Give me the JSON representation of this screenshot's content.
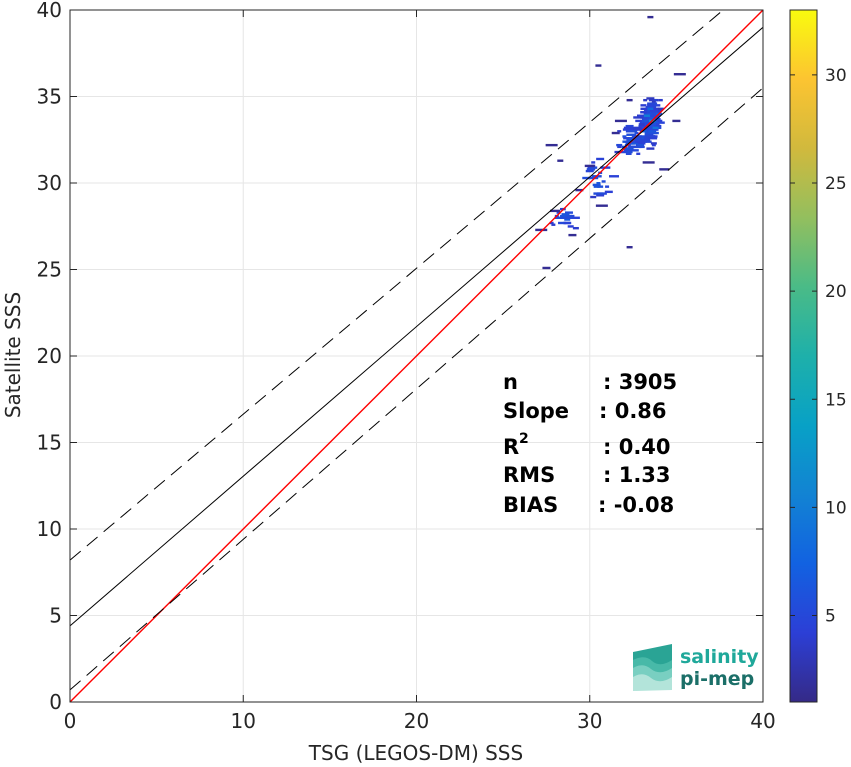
{
  "chart_data": {
    "type": "scatter",
    "title": "",
    "xlabel": "TSG (LEGOS-DM) SSS",
    "ylabel": "Satellite SSS",
    "xlim": [
      0,
      40
    ],
    "ylim": [
      0,
      40
    ],
    "xticks": [
      0,
      10,
      20,
      30,
      40
    ],
    "yticks": [
      0,
      5,
      10,
      15,
      20,
      25,
      30,
      35,
      40
    ],
    "grid": true,
    "colorbar": {
      "colormap": "parula",
      "range": [
        1,
        33
      ],
      "ticks": [
        5,
        10,
        15,
        20,
        25,
        30
      ]
    },
    "lines": [
      {
        "role": "one-to-one",
        "color": "#ff0000",
        "style": "solid",
        "points": [
          [
            0,
            0
          ],
          [
            40,
            40
          ]
        ]
      },
      {
        "role": "regression",
        "color": "#000000",
        "style": "solid",
        "points": [
          [
            0,
            4.4
          ],
          [
            40,
            39.0
          ]
        ]
      },
      {
        "role": "upper-bound",
        "color": "#000000",
        "style": "dashed",
        "points": [
          [
            0,
            8.2
          ],
          [
            37.7,
            40
          ]
        ]
      },
      {
        "role": "lower-bound",
        "color": "#000000",
        "style": "dashed",
        "points": [
          [
            0,
            0.7
          ],
          [
            40,
            35.5
          ]
        ]
      }
    ],
    "clusters": [
      {
        "cx": 33.5,
        "cy": 33.5,
        "sx": 0.55,
        "sy": 1.3,
        "n": 170
      },
      {
        "cx": 32.4,
        "cy": 32.4,
        "sx": 0.8,
        "sy": 0.9,
        "n": 60
      },
      {
        "cx": 30.5,
        "cy": 30.2,
        "sx": 0.9,
        "sy": 1.1,
        "n": 25
      },
      {
        "cx": 28.6,
        "cy": 28.0,
        "sx": 0.8,
        "sy": 0.6,
        "n": 22
      }
    ],
    "outliers": [
      [
        27.5,
        25.1
      ],
      [
        27.2,
        27.3
      ],
      [
        33.5,
        39.6
      ],
      [
        30.5,
        36.8
      ],
      [
        32.3,
        34.8
      ],
      [
        31.5,
        32.9
      ],
      [
        30.0,
        31.0
      ],
      [
        29.4,
        29.6
      ],
      [
        32.3,
        26.3
      ],
      [
        27.8,
        32.2
      ],
      [
        28.3,
        31.3
      ],
      [
        35.2,
        36.3
      ],
      [
        35.0,
        33.6
      ],
      [
        34.3,
        30.8
      ],
      [
        33.4,
        31.2
      ],
      [
        29.0,
        27.0
      ],
      [
        28.0,
        28.4
      ],
      [
        30.7,
        28.7
      ],
      [
        31.8,
        33.6
      ]
    ],
    "hotspots": [
      {
        "x": 33.6,
        "y": 33.6,
        "level": 13
      },
      {
        "x": 33.3,
        "y": 33.9,
        "level": 10
      },
      {
        "x": 33.8,
        "y": 33.2,
        "level": 9
      },
      {
        "x": 33.5,
        "y": 34.3,
        "level": 8
      },
      {
        "x": 33.1,
        "y": 33.0,
        "level": 7
      },
      {
        "x": 34.0,
        "y": 34.0,
        "level": 7
      }
    ]
  },
  "stats": {
    "n_label": "n",
    "n_value": ": 3905",
    "slope_label": "Slope",
    "slope_value": ": 0.86",
    "r2_label": "R",
    "r2_sup": "2",
    "r2_value": ": 0.40",
    "rms_label": "RMS",
    "rms_value": ": 1.33",
    "bias_label": "BIAS",
    "bias_value": ": -0.08"
  },
  "logo": {
    "line1": "salinity",
    "line2": "pi-mep",
    "color1": "#1fa89a",
    "color2": "#1b6f68"
  }
}
